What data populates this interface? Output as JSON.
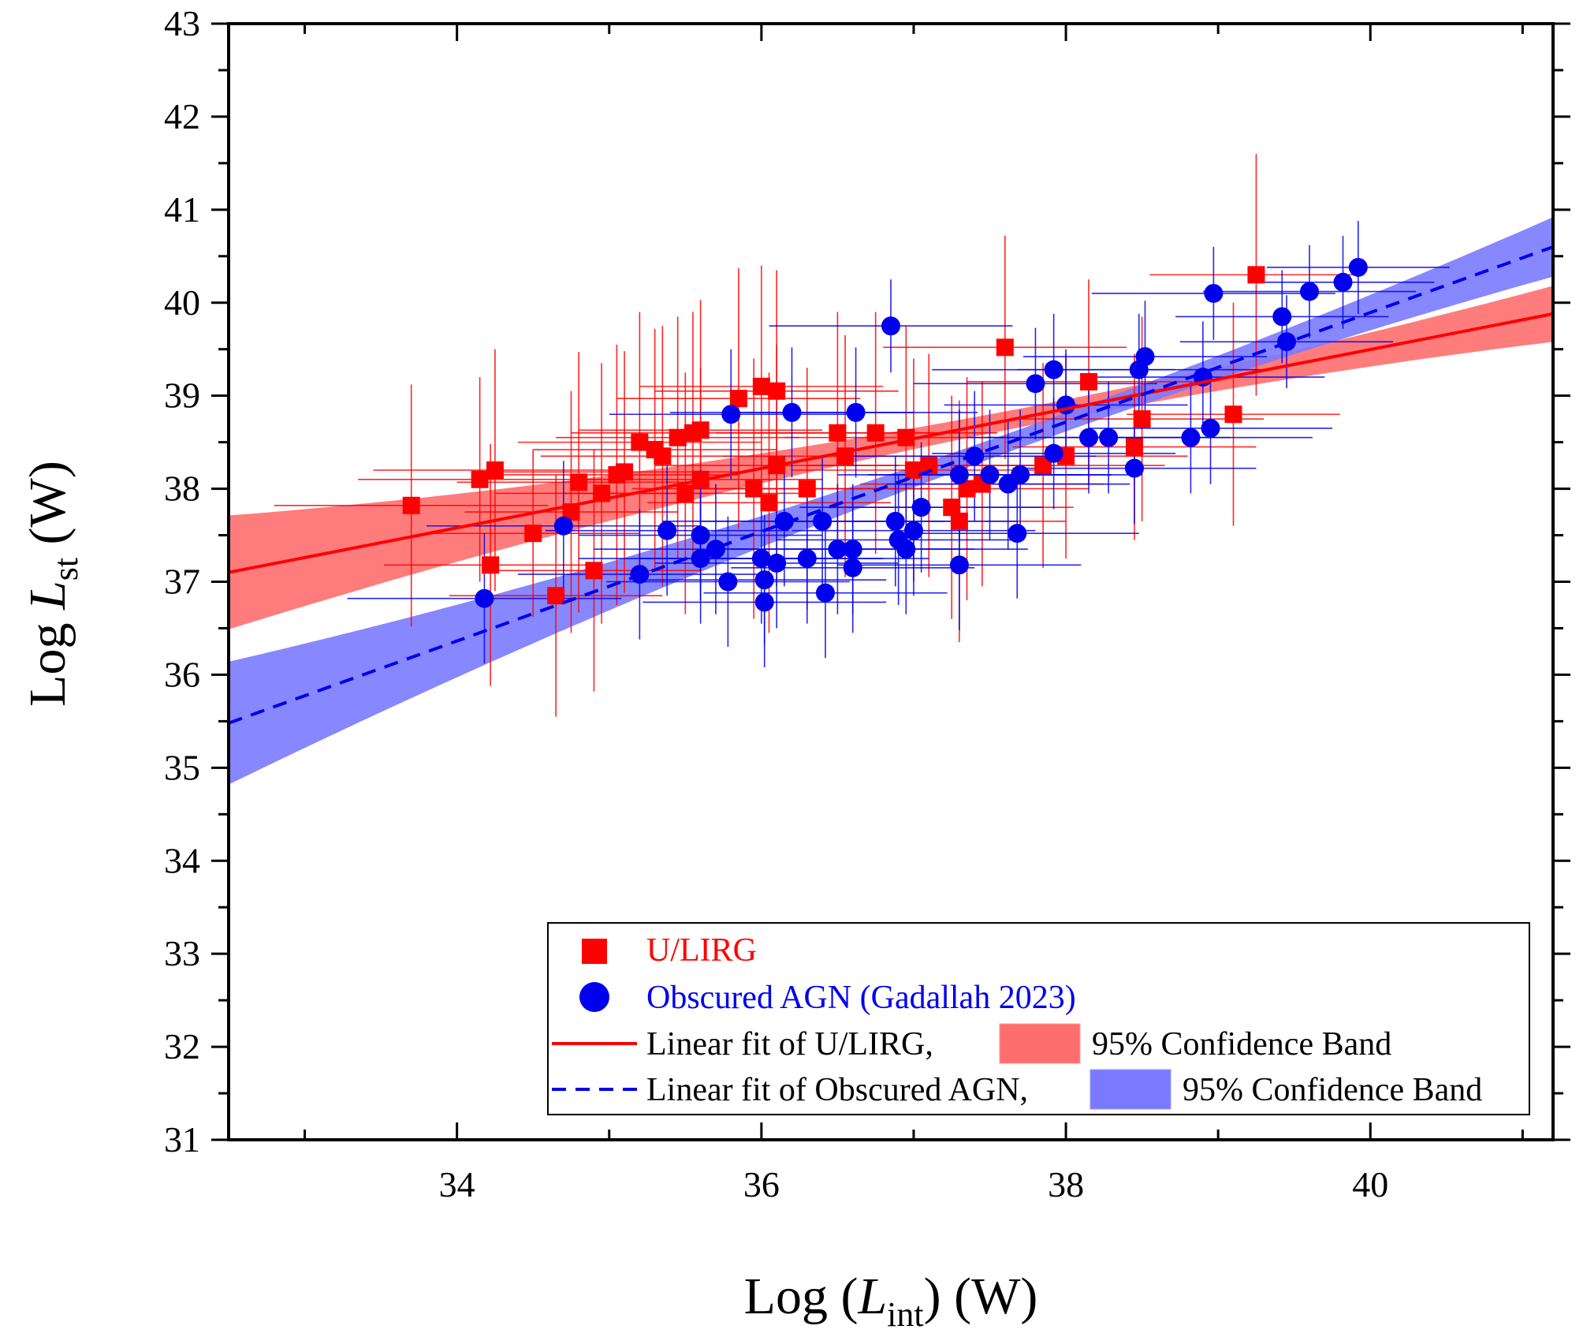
{
  "chart_data": {
    "type": "scatter",
    "xlabel": {
      "prefix": "Log (",
      "var": "L",
      "sub": "int",
      "suffix": ") (W)"
    },
    "ylabel": {
      "prefix": "Log ",
      "var": "L",
      "sub": "st",
      "suffix": " (W)"
    },
    "xlim": [
      32.5,
      41.2
    ],
    "ylim": [
      31,
      43
    ],
    "xticks": [
      "34",
      "36",
      "38",
      "40"
    ],
    "yticks": [
      "31",
      "32",
      "33",
      "34",
      "35",
      "36",
      "37",
      "38",
      "39",
      "40",
      "41",
      "42",
      "43"
    ],
    "colors": {
      "ulirg": "#ff0000",
      "agn": "#0000ee",
      "ulirg_band": "#ff6e6e",
      "agn_band": "#7a7aff"
    },
    "legend": {
      "ulirg": "U/LIRG",
      "agn": "Obscured AGN (Gadallah 2023)",
      "fit_ulirg": "Linear fit of U/LIRG,",
      "band_ulirg": "95% Confidence Band",
      "fit_agn": "Linear fit of Obscured AGN,",
      "band_agn": "95% Confidence Band"
    },
    "fits": {
      "ulirg": {
        "x": [
          32.5,
          41.2
        ],
        "y": [
          37.1,
          39.88
        ],
        "band_halfwidth_ends": 0.42,
        "band_halfwidth_mid": 0.1
      },
      "agn": {
        "x": [
          32.5,
          41.2
        ],
        "y": [
          35.48,
          40.6
        ],
        "band_halfwidth_ends": 0.45,
        "band_halfwidth_mid": 0.1
      }
    },
    "series": [
      {
        "name": "U/LIRG",
        "marker": "square",
        "points": [
          [
            33.7,
            37.82,
            0.9,
            1.3
          ],
          [
            34.15,
            38.1,
            0.8,
            1.1
          ],
          [
            34.25,
            38.2,
            0.8,
            1.3
          ],
          [
            34.22,
            37.18,
            0.7,
            1.3
          ],
          [
            34.5,
            37.52,
            0.7,
            0.9
          ],
          [
            34.65,
            36.85,
            0.7,
            1.3
          ],
          [
            34.75,
            37.75,
            0.7,
            1.3
          ],
          [
            34.8,
            38.07,
            0.8,
            1.4
          ],
          [
            34.9,
            37.12,
            0.7,
            1.3
          ],
          [
            34.95,
            37.95,
            0.7,
            1.4
          ],
          [
            35.05,
            38.15,
            0.8,
            1.4
          ],
          [
            35.1,
            38.18,
            0.8,
            1.3
          ],
          [
            35.2,
            38.5,
            0.8,
            1.4
          ],
          [
            35.3,
            38.42,
            0.8,
            1.3
          ],
          [
            35.35,
            38.35,
            0.8,
            1.4
          ],
          [
            35.45,
            38.55,
            0.8,
            1.3
          ],
          [
            35.55,
            38.6,
            0.8,
            1.3
          ],
          [
            35.6,
            38.63,
            0.8,
            1.4
          ],
          [
            35.5,
            37.95,
            0.8,
            1.3
          ],
          [
            35.6,
            38.1,
            0.8,
            1.2
          ],
          [
            35.85,
            38.97,
            0.8,
            1.4
          ],
          [
            36.0,
            39.1,
            0.8,
            1.3
          ],
          [
            36.1,
            39.05,
            0.8,
            1.3
          ],
          [
            35.95,
            38.0,
            0.8,
            1.4
          ],
          [
            36.05,
            37.85,
            0.8,
            1.4
          ],
          [
            36.1,
            38.25,
            0.8,
            1.3
          ],
          [
            36.3,
            38.0,
            0.8,
            1.3
          ],
          [
            36.5,
            38.6,
            0.8,
            1.3
          ],
          [
            36.55,
            38.35,
            0.8,
            1.3
          ],
          [
            36.75,
            38.6,
            0.8,
            1.3
          ],
          [
            36.95,
            38.55,
            0.8,
            1.2
          ],
          [
            37.0,
            38.2,
            0.8,
            1.2
          ],
          [
            37.1,
            38.25,
            0.8,
            1.2
          ],
          [
            37.25,
            37.8,
            0.8,
            1.2
          ],
          [
            37.3,
            37.65,
            0.7,
            1.3
          ],
          [
            37.35,
            38.0,
            0.8,
            1.2
          ],
          [
            37.45,
            38.05,
            0.8,
            1.1
          ],
          [
            37.6,
            39.52,
            0.8,
            1.2
          ],
          [
            37.85,
            38.25,
            0.8,
            1.1
          ],
          [
            38.0,
            38.35,
            0.8,
            1.1
          ],
          [
            38.15,
            39.15,
            0.8,
            1.1
          ],
          [
            38.45,
            38.45,
            0.8,
            1.0
          ],
          [
            38.5,
            38.75,
            0.8,
            1.1
          ],
          [
            39.1,
            38.8,
            0.7,
            1.2
          ],
          [
            39.25,
            40.3,
            0.7,
            1.3
          ]
        ]
      },
      {
        "name": "Obscured AGN",
        "marker": "circle",
        "points": [
          [
            34.18,
            36.82,
            0.9,
            0.7
          ],
          [
            34.7,
            37.6,
            0.9,
            0.7
          ],
          [
            35.2,
            37.08,
            0.8,
            0.7
          ],
          [
            35.38,
            37.55,
            0.8,
            0.7
          ],
          [
            35.6,
            37.5,
            0.8,
            0.7
          ],
          [
            35.6,
            37.25,
            0.8,
            0.7
          ],
          [
            35.7,
            37.35,
            0.8,
            0.7
          ],
          [
            35.78,
            37.0,
            0.8,
            0.7
          ],
          [
            35.8,
            38.8,
            0.8,
            0.7
          ],
          [
            36.0,
            37.25,
            0.8,
            0.7
          ],
          [
            36.02,
            37.02,
            0.8,
            0.7
          ],
          [
            36.02,
            36.78,
            0.8,
            0.7
          ],
          [
            36.1,
            37.2,
            0.8,
            0.7
          ],
          [
            36.15,
            37.65,
            0.8,
            0.7
          ],
          [
            36.2,
            38.82,
            0.8,
            0.7
          ],
          [
            36.3,
            37.25,
            0.8,
            0.7
          ],
          [
            36.4,
            37.65,
            0.8,
            0.7
          ],
          [
            36.42,
            36.88,
            0.8,
            0.7
          ],
          [
            36.5,
            37.35,
            0.8,
            0.7
          ],
          [
            36.6,
            37.15,
            0.8,
            0.7
          ],
          [
            36.6,
            37.35,
            0.8,
            0.7
          ],
          [
            36.62,
            38.82,
            0.8,
            0.7
          ],
          [
            36.85,
            39.75,
            0.8,
            0.5
          ],
          [
            36.88,
            37.65,
            0.8,
            0.7
          ],
          [
            36.9,
            37.45,
            0.8,
            0.7
          ],
          [
            36.95,
            37.35,
            0.8,
            0.7
          ],
          [
            37.0,
            37.55,
            0.8,
            0.7
          ],
          [
            37.05,
            37.8,
            0.8,
            0.7
          ],
          [
            37.3,
            37.18,
            0.8,
            0.7
          ],
          [
            37.3,
            38.15,
            0.8,
            0.7
          ],
          [
            37.4,
            38.35,
            0.8,
            0.7
          ],
          [
            37.5,
            38.15,
            0.8,
            0.7
          ],
          [
            37.62,
            38.05,
            0.8,
            0.7
          ],
          [
            37.68,
            37.52,
            0.8,
            0.7
          ],
          [
            37.7,
            38.15,
            0.8,
            0.7
          ],
          [
            37.8,
            39.13,
            0.8,
            0.6
          ],
          [
            37.92,
            39.28,
            0.8,
            0.6
          ],
          [
            37.92,
            38.38,
            0.8,
            0.6
          ],
          [
            38.0,
            38.9,
            0.8,
            0.6
          ],
          [
            38.15,
            38.55,
            0.8,
            0.6
          ],
          [
            38.28,
            38.55,
            0.8,
            0.6
          ],
          [
            38.45,
            38.22,
            0.8,
            0.6
          ],
          [
            38.48,
            39.28,
            0.8,
            0.6
          ],
          [
            38.52,
            39.42,
            0.8,
            0.6
          ],
          [
            38.82,
            38.55,
            0.8,
            0.6
          ],
          [
            38.9,
            39.2,
            0.8,
            0.6
          ],
          [
            38.95,
            38.65,
            0.8,
            0.6
          ],
          [
            38.97,
            40.1,
            0.8,
            0.5
          ],
          [
            39.42,
            39.85,
            0.7,
            0.5
          ],
          [
            39.45,
            39.58,
            0.7,
            0.5
          ],
          [
            39.6,
            40.12,
            0.7,
            0.5
          ],
          [
            39.82,
            40.22,
            0.6,
            0.5
          ],
          [
            39.92,
            40.38,
            0.6,
            0.5
          ]
        ]
      }
    ]
  }
}
